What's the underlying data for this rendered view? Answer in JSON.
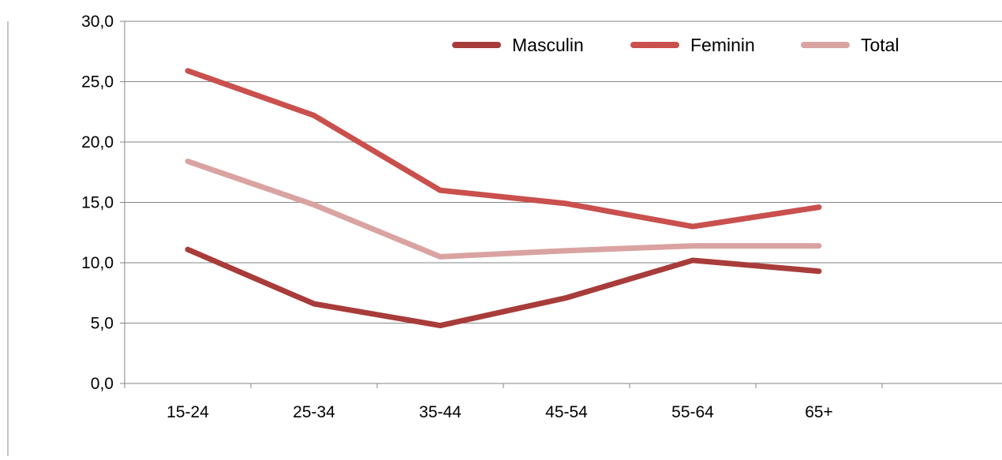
{
  "chart_data": {
    "type": "line",
    "title": "",
    "xlabel": "",
    "ylabel": "",
    "categories": [
      "15-24",
      "25-34",
      "35-44",
      "45-54",
      "55-64",
      "65+"
    ],
    "y_ticks": [
      "0,0",
      "5,0",
      "10,0",
      "15,0",
      "20,0",
      "25,0",
      "30,0"
    ],
    "ylim": [
      0,
      30
    ],
    "grid": true,
    "legend_position": "top-right",
    "series": [
      {
        "name": "Masculin",
        "color": "#a83c3a",
        "values": [
          11.1,
          6.6,
          4.8,
          7.1,
          10.2,
          9.3
        ]
      },
      {
        "name": "Feminin",
        "color": "#c9504d",
        "values": [
          25.9,
          22.2,
          16.0,
          14.9,
          13.0,
          14.6
        ]
      },
      {
        "name": "Total",
        "color": "#d9a3a1",
        "values": [
          18.4,
          14.8,
          10.5,
          11.0,
          11.4,
          11.4
        ]
      }
    ]
  }
}
